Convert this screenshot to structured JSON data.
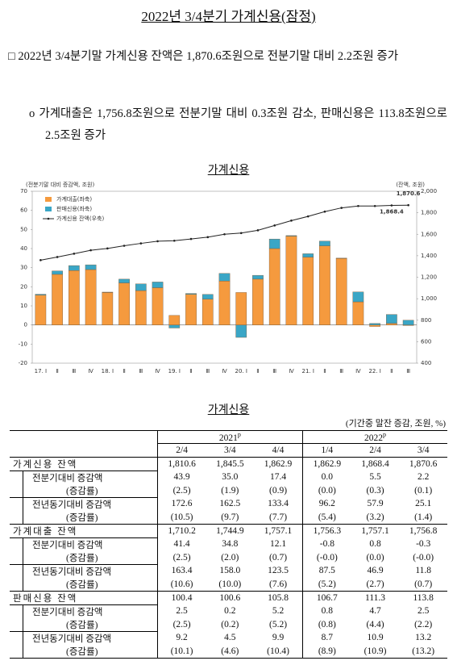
{
  "title": "2022년 3/4분기 가계신용(잠정)",
  "bullets": [
    "□ 2022년 3/4분기말 가계신용 잔액은 1,870.6조원으로 전분기말 대비 2.2조원 증가",
    "o 가계대출은 1,756.8조원으로 전분기말 대비 0.3조원 감소, 판매신용은 113.8조원으로 2.5조원 증가"
  ],
  "chart_data": {
    "type": "bar",
    "title": "가계신용",
    "ylabel": "(전분기말 대비 증감액, 조원)",
    "y2label": "(잔액, 조원)",
    "categories": [
      "17. Ⅰ",
      "Ⅱ",
      "Ⅲ",
      "Ⅳ",
      "18. Ⅰ",
      "Ⅱ",
      "Ⅲ",
      "Ⅳ",
      "19. Ⅰ",
      "Ⅱ",
      "Ⅲ",
      "Ⅳ",
      "20. Ⅰ",
      "Ⅱ",
      "Ⅲ",
      "Ⅳ",
      "21. Ⅰ",
      "Ⅱ",
      "Ⅲ",
      "Ⅳ",
      "22. Ⅰ",
      "Ⅱ",
      "Ⅲ"
    ],
    "stacked": true,
    "series": [
      {
        "name": "가계대출(좌축)",
        "color": "#f59a3e",
        "type": "bar",
        "values": [
          15.6,
          26.5,
          28.5,
          29,
          17,
          22,
          18,
          19.5,
          5,
          16,
          13.5,
          23,
          17,
          24,
          40,
          46.5,
          35.5,
          41.4,
          34.8,
          12.1,
          -0.8,
          0.8,
          -0.3
        ]
      },
      {
        "name": "판매신용(좌축)",
        "color": "#3aa6c6",
        "type": "bar",
        "values": [
          0.5,
          1.8,
          2.6,
          2.5,
          0.2,
          2,
          3.5,
          3,
          -1.6,
          0.5,
          2.5,
          4,
          -6.5,
          2,
          5,
          0.3,
          1.8,
          2.5,
          0.2,
          5.2,
          0.8,
          4.7,
          2.5
        ]
      },
      {
        "name": "가계신용 잔액(우축)",
        "color": "#222222",
        "type": "line",
        "axis": "y2",
        "values": [
          1359,
          1388,
          1419,
          1451,
          1468,
          1493,
          1515,
          1535,
          1540,
          1556,
          1573,
          1600,
          1611,
          1637,
          1682,
          1727,
          1766,
          1810.6,
          1845.5,
          1862.9,
          1862.9,
          1868.4,
          1870.6
        ],
        "value_labels": [
          null,
          null,
          null,
          null,
          null,
          null,
          null,
          null,
          null,
          null,
          null,
          null,
          null,
          null,
          null,
          null,
          null,
          null,
          null,
          null,
          null,
          "1,868.4",
          "1,870.6"
        ]
      }
    ],
    "ylim": [
      -20,
      70
    ],
    "yticks": [
      -20,
      -10,
      0,
      10,
      20,
      30,
      40,
      50,
      60,
      70
    ],
    "y2lim": [
      400,
      2000
    ],
    "y2ticks": [
      400,
      600,
      800,
      {
        "value": 1000,
        "label": "1,000"
      },
      {
        "value": 1200,
        "label": "1,200"
      },
      {
        "value": 1400,
        "label": "1,400"
      },
      {
        "value": 1600,
        "label": "1,600"
      },
      {
        "value": 1800,
        "label": "1,800"
      },
      {
        "value": 2000,
        "label": "2,000"
      }
    ],
    "grid": false,
    "legend": "top-left"
  },
  "table": {
    "title": "가계신용",
    "unit": "(기간중 말잔 증감, 조원, %)",
    "groups": [
      {
        "year": "2021",
        "mark": "p"
      },
      {
        "year": "2022",
        "mark": "p"
      }
    ],
    "columns": [
      "2/4",
      "3/4",
      "4/4",
      "1/4",
      "2/4",
      "3/4"
    ],
    "rows": [
      {
        "label": "가계신용 잔액",
        "values": [
          "1,810.6",
          "1,845.5",
          "1,862.9",
          "1,862.9",
          "1,868.4",
          "1,870.6"
        ]
      },
      {
        "label": "전분기대비 증감액",
        "values": [
          "43.9",
          "35.0",
          "17.4",
          "0.0",
          "5.5",
          "2.2"
        ]
      },
      {
        "label": "(증감률)",
        "values": [
          "(2.5)",
          "(1.9)",
          "(0.9)",
          "(0.0)",
          "(0.3)",
          "(0.1)"
        ]
      },
      {
        "label": "전년동기대비 증감액",
        "values": [
          "172.6",
          "162.5",
          "133.4",
          "96.2",
          "57.9",
          "25.1"
        ]
      },
      {
        "label": "(증감률)",
        "values": [
          "(10.5)",
          "(9.7)",
          "(7.7)",
          "(5.4)",
          "(3.2)",
          "(1.4)"
        ]
      },
      {
        "label": "가계대출 잔액",
        "values": [
          "1,710.2",
          "1,744.9",
          "1,757.1",
          "1,756.3",
          "1,757.1",
          "1,756.8"
        ]
      },
      {
        "label": "전분기대비 증감액",
        "values": [
          "41.4",
          "34.8",
          "12.1",
          "-0.8",
          "0.8",
          "-0.3"
        ]
      },
      {
        "label": "(증감률)",
        "values": [
          "(2.5)",
          "(2.0)",
          "(0.7)",
          "(-0.0)",
          "(0.0)",
          "(-0.0)"
        ]
      },
      {
        "label": "전년동기대비 증감액",
        "values": [
          "163.4",
          "158.0",
          "123.5",
          "87.5",
          "46.9",
          "11.8"
        ]
      },
      {
        "label": "(증감률)",
        "values": [
          "(10.6)",
          "(10.0)",
          "(7.6)",
          "(5.2)",
          "(2.7)",
          "(0.7)"
        ]
      },
      {
        "label": "판매신용 잔액",
        "values": [
          "100.4",
          "100.6",
          "105.8",
          "106.7",
          "111.3",
          "113.8"
        ]
      },
      {
        "label": "전분기대비 증감액",
        "values": [
          "2.5",
          "0.2",
          "5.2",
          "0.8",
          "4.7",
          "2.5"
        ]
      },
      {
        "label": "(증감률)",
        "values": [
          "(2.5)",
          "(0.2)",
          "(5.2)",
          "(0.8)",
          "(4.4)",
          "(2.2)"
        ]
      },
      {
        "label": "전년동기대비 증감액",
        "values": [
          "9.2",
          "4.5",
          "9.9",
          "8.7",
          "10.9",
          "13.2"
        ]
      },
      {
        "label": "(증감률)",
        "values": [
          "(10.1)",
          "(4.6)",
          "(10.4)",
          "(8.9)",
          "(10.9)",
          "(13.2)"
        ]
      }
    ]
  }
}
